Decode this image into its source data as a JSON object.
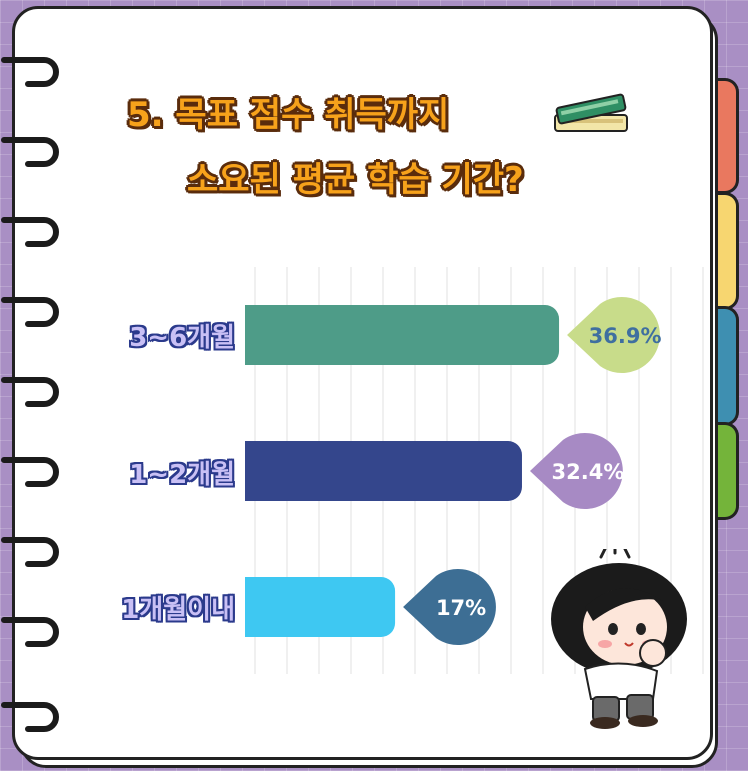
{
  "title": {
    "line1": "5. 목표 점수 취득까지",
    "line2": "소요된 평균 학습 기간?"
  },
  "icons": [
    "books-icon",
    "girl-character-icon",
    "notebook-ring-icon"
  ],
  "colors": {
    "background": "#a98fc4",
    "tab_red": "#e9785f",
    "tab_yellow": "#f7d670",
    "tab_blue": "#3e8fb1",
    "tab_green": "#74b43a"
  },
  "chart_data": {
    "type": "bar",
    "orientation": "horizontal",
    "categories": [
      "3~6개월",
      "1~2개월",
      "1개월이내"
    ],
    "values": [
      36.9,
      32.4,
      17
    ],
    "value_labels": [
      "36.9%",
      "32.4%",
      "17%"
    ],
    "bar_colors": [
      "#4e9c88",
      "#34468c",
      "#3ec8f2"
    ],
    "label_colors": [
      "#c8dc8a",
      "#a78ac4",
      "#3d6e94"
    ],
    "label_text_colors": [
      "#3f6fa0",
      "#ffffff",
      "#ffffff"
    ],
    "xlim": [
      0,
      40
    ],
    "grid": true,
    "legend": "none"
  }
}
